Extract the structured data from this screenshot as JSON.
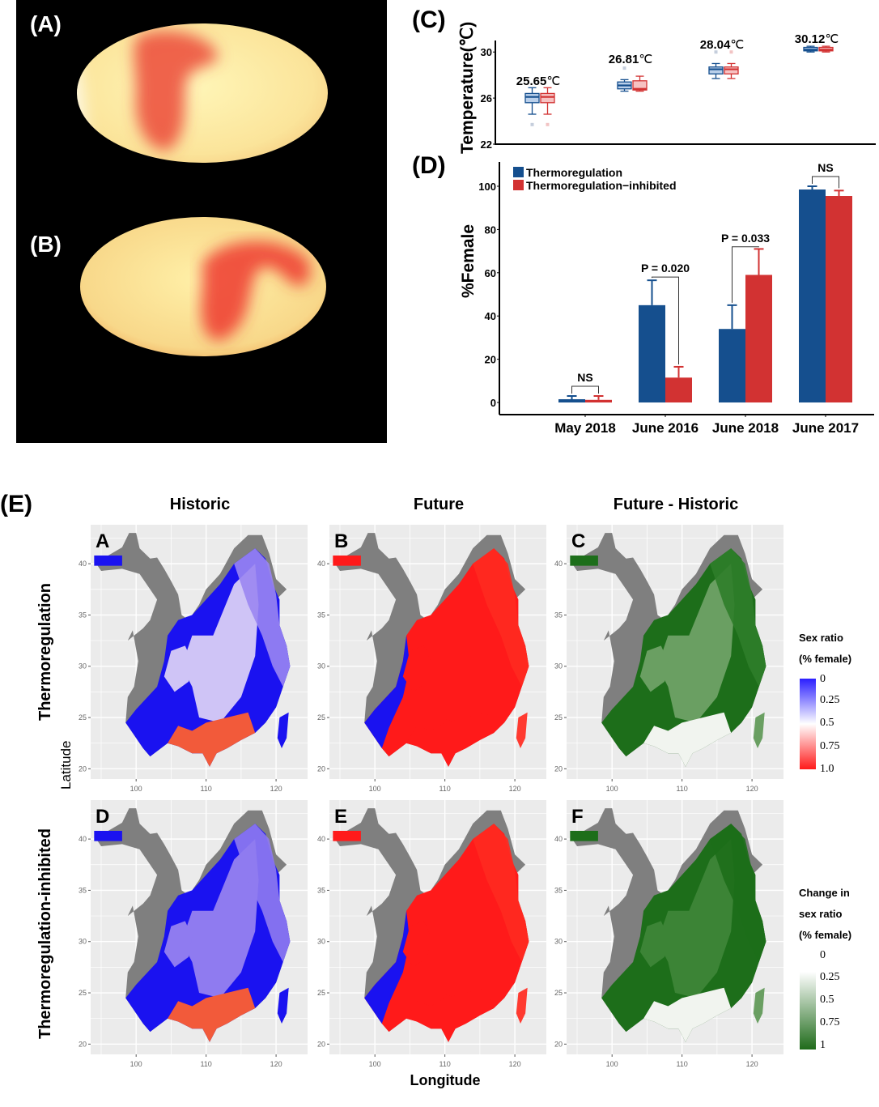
{
  "figure": {
    "panel_labels": {
      "a": "(A)",
      "b": "(B)",
      "c": "(C)",
      "d": "(D)",
      "e": "(E)"
    }
  },
  "eggs": [
    {
      "label": "(A)",
      "description": "candled egg, thermoregulation group"
    },
    {
      "label": "(B)",
      "description": "candled egg, thermoregulation-inhibited group"
    }
  ],
  "colors": {
    "thermoregulation": "#154f8e",
    "inhibited": "#d23232",
    "map_bg": "#ebebeb",
    "map_grey": "#7f7f7f"
  },
  "chart_data": [
    {
      "id": "C",
      "type": "box",
      "title": "",
      "ylabel": "Temperature(℃)",
      "ylim": [
        22,
        31
      ],
      "yticks": [
        22,
        26,
        30
      ],
      "categories": [
        "May 2018",
        "June 2016",
        "June 2018",
        "June 2017"
      ],
      "annotations": [
        "25.65℃",
        "26.81℃",
        "28.04℃",
        "30.12℃"
      ],
      "series": [
        {
          "name": "Thermoregulation",
          "boxes": [
            {
              "min": 24.6,
              "q1": 25.6,
              "median": 26.1,
              "q3": 26.4,
              "max": 26.9,
              "outliers": [
                23.7
              ]
            },
            {
              "min": 26.6,
              "q1": 26.8,
              "median": 27.1,
              "q3": 27.4,
              "max": 27.6,
              "outliers": [
                28.6
              ]
            },
            {
              "min": 27.7,
              "q1": 28.1,
              "median": 28.5,
              "q3": 28.7,
              "max": 29.0,
              "outliers": [
                30.0
              ]
            },
            {
              "min": 30.0,
              "q1": 30.1,
              "median": 30.2,
              "q3": 30.4,
              "max": 30.5,
              "outliers": []
            }
          ]
        },
        {
          "name": "Thermoregulation-inhibited",
          "boxes": [
            {
              "min": 24.6,
              "q1": 25.6,
              "median": 26.1,
              "q3": 26.4,
              "max": 26.9,
              "outliers": [
                23.7
              ]
            },
            {
              "min": 26.6,
              "q1": 26.7,
              "median": 26.8,
              "q3": 27.5,
              "max": 27.9,
              "outliers": []
            },
            {
              "min": 27.7,
              "q1": 28.1,
              "median": 28.5,
              "q3": 28.7,
              "max": 29.0,
              "outliers": [
                30.0
              ]
            },
            {
              "min": 30.0,
              "q1": 30.1,
              "median": 30.2,
              "q3": 30.4,
              "max": 30.5,
              "outliers": []
            }
          ]
        }
      ]
    },
    {
      "id": "D",
      "type": "bar",
      "ylabel": "%Female",
      "ylim": [
        -5,
        110
      ],
      "yticks": [
        0,
        20,
        40,
        60,
        80,
        100
      ],
      "categories": [
        "May 2018",
        "June 2016",
        "June 2018",
        "June 2017"
      ],
      "legend": [
        "Thermoregulation",
        "Thermoregulation−inhibited"
      ],
      "legend_position": "top-left",
      "series": [
        {
          "name": "Thermoregulation",
          "values": [
            1.5,
            45,
            34,
            98.5
          ],
          "errors": [
            1.5,
            11.5,
            11,
            1.5
          ]
        },
        {
          "name": "Thermoregulation-inhibited",
          "values": [
            1.2,
            11.5,
            59,
            95.5
          ],
          "errors": [
            1.8,
            5,
            12,
            2.5
          ]
        }
      ],
      "significance": [
        "NS",
        "P = 0.020",
        "P = 0.033",
        "NS"
      ]
    },
    {
      "id": "E",
      "type": "heatmap",
      "description": "Map grid of predicted sex ratio across China",
      "column_titles": [
        "Historic",
        "Future",
        "Future - Historic"
      ],
      "row_titles": [
        "Thermoregulation",
        "Thermoregulation-inhibited"
      ],
      "panel_letters": [
        "A",
        "B",
        "C",
        "D",
        "E",
        "F"
      ],
      "xlabel": "Longitude",
      "ylabel": "Latitude",
      "xticks": [
        100,
        110,
        120
      ],
      "yticks": [
        20,
        25,
        30,
        35,
        40
      ],
      "legends": [
        {
          "title_lines": [
            "Sex ratio",
            "(% female)"
          ],
          "ticks": [
            "0",
            "0.25",
            "0.5",
            "0.75",
            "1.0"
          ],
          "colors": [
            "#2b1fff",
            "#ffffff",
            "#ff1a1a"
          ]
        },
        {
          "title_lines": [
            "Change in",
            "sex ratio",
            "(% female)"
          ],
          "ticks": [
            "0",
            "0.25",
            "0.5",
            "0.75",
            "1"
          ],
          "colors": [
            "#ffffff",
            "#1f6b1a"
          ]
        }
      ]
    }
  ]
}
